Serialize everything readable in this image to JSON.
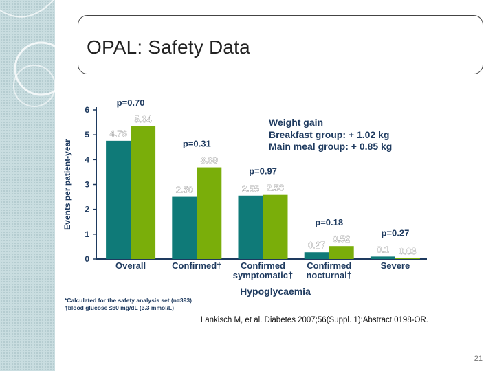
{
  "slide": {
    "title": "OPAL: Safety Data",
    "page_number": "21"
  },
  "chart_data": {
    "type": "bar",
    "ylabel": "Events per patient-year",
    "xlabel": "Hypoglycaemia",
    "ylim": [
      0,
      6
    ],
    "yticks": [
      "0",
      "1",
      "2",
      "3",
      "4",
      "5",
      "6"
    ],
    "categories": [
      "Overall",
      "Confirmed†",
      "Confirmed symptomatic†",
      "Confirmed nocturnal†",
      "Severe"
    ],
    "category_lines": [
      [
        "Overall"
      ],
      [
        "Confirmed†"
      ],
      [
        "Confirmed",
        "symptomatic†"
      ],
      [
        "Confirmed",
        "nocturnal†"
      ],
      [
        "Severe"
      ]
    ],
    "series": [
      {
        "values": [
          4.76,
          2.5,
          2.55,
          0.27,
          0.1
        ],
        "labels": [
          "4.76",
          "2.50",
          "2.55",
          "0.27",
          "0.1"
        ],
        "color": "#0f7a78"
      },
      {
        "values": [
          5.34,
          3.69,
          2.58,
          0.52,
          0.03
        ],
        "labels": [
          "5.34",
          "3.69",
          "2.58",
          "0.52",
          "0.03"
        ],
        "color": "#7aae0a"
      }
    ],
    "p_values": [
      "p=0.70",
      "p=0.31",
      "p=0.97",
      "p=0.18",
      "p=0.27"
    ],
    "annotation": {
      "heading": "Weight gain",
      "lines": [
        "Breakfast group:  + 1.02 kg",
        "Main meal group:  + 0.85 kg"
      ]
    },
    "footnotes": [
      "*Calculated for the safety analysis set (n=393)",
      "†blood glucose ≤60 mg/dL (3.3 mmol/L)"
    ],
    "citation": "Lankisch M, et al. Diabetes 2007;56(Suppl. 1):Abstract 0198-OR.",
    "colors": {
      "text": "#1e3a5f",
      "axis": "#1e3a5f",
      "label": "#ffffff"
    }
  }
}
